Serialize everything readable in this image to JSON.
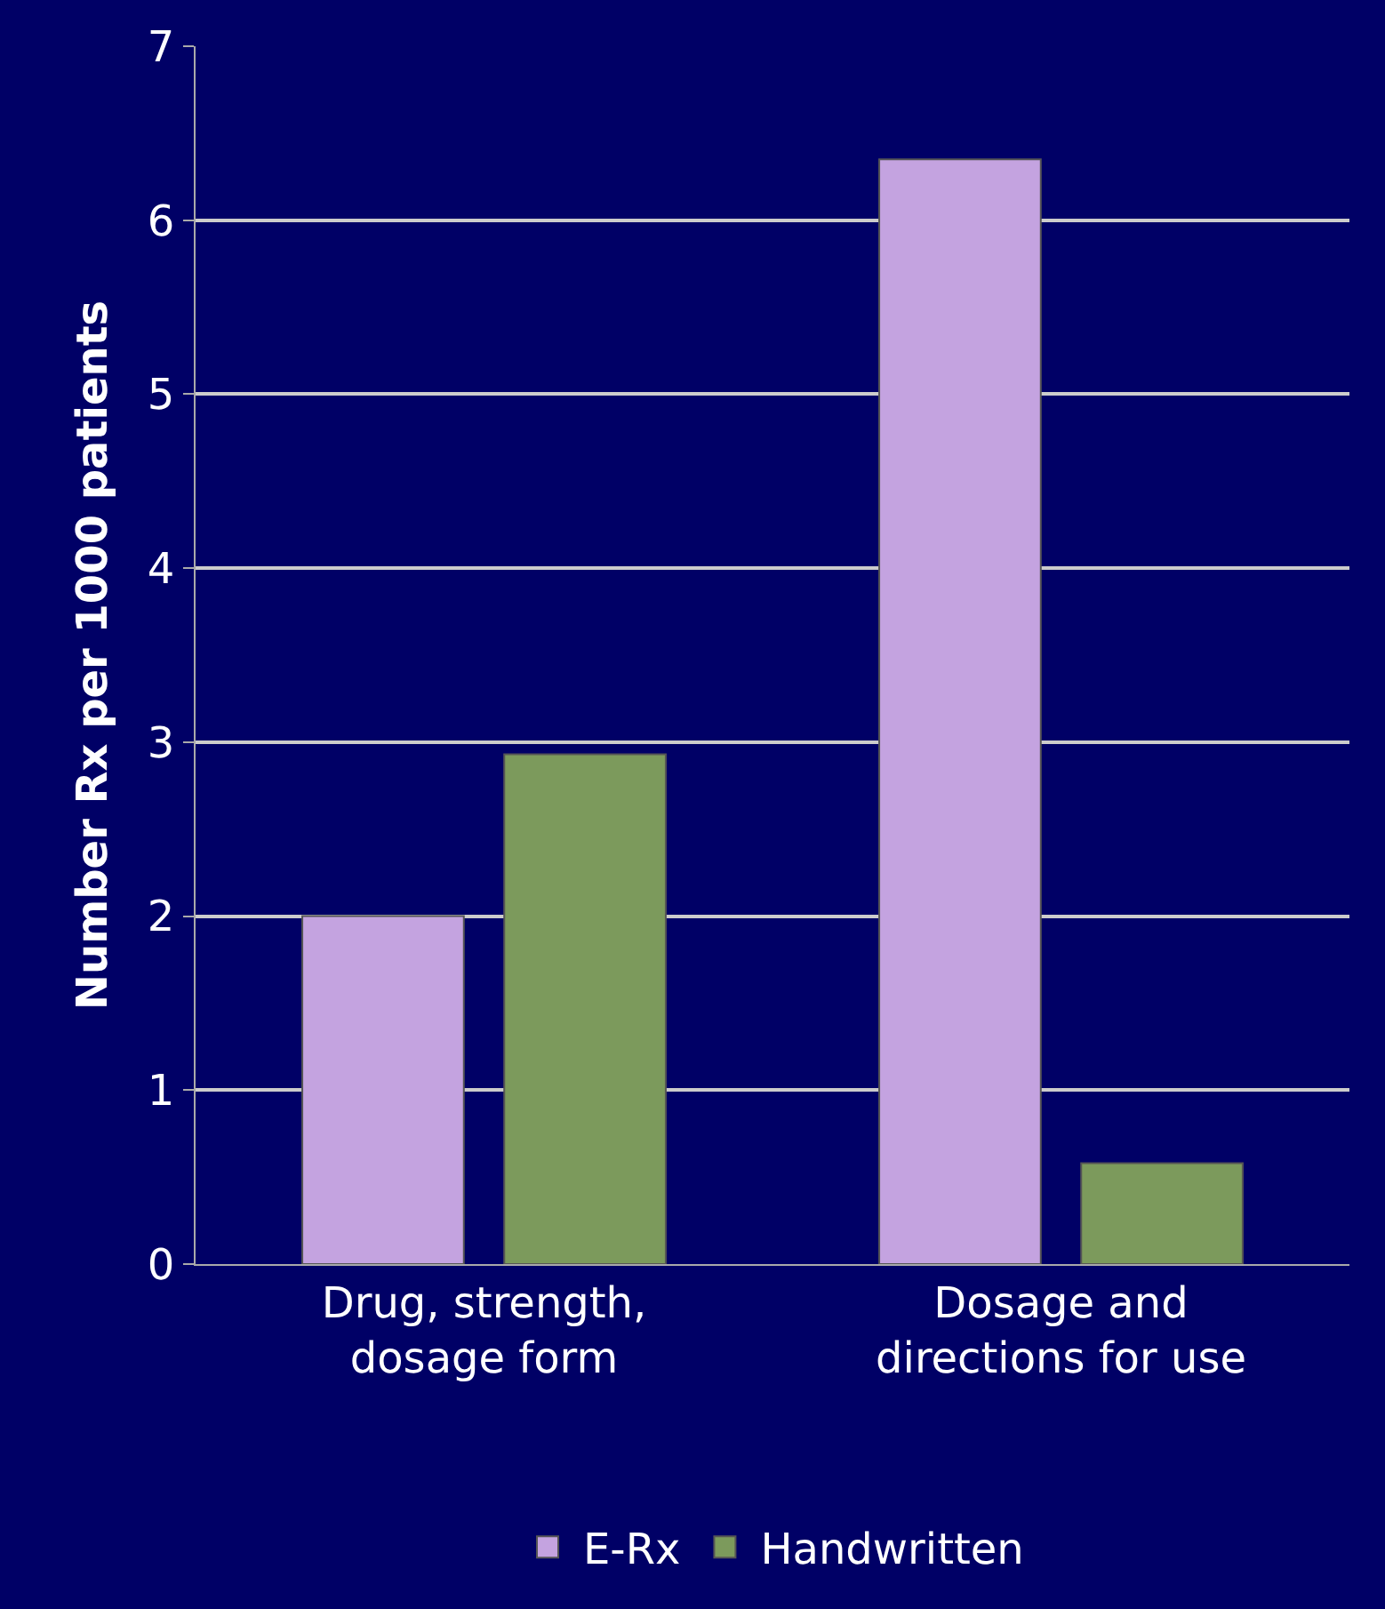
{
  "chart_data": {
    "type": "bar",
    "ylabel": "Number Rx per 1000 patients",
    "categories": [
      "Drug, strength,\ndosage form",
      "Dosage and\ndirections for use"
    ],
    "series": [
      {
        "name": "E-Rx",
        "color": "#c4a3e0",
        "values": [
          2.0,
          6.35
        ]
      },
      {
        "name": "Handwritten",
        "color": "#7c9a5c",
        "values": [
          2.93,
          0.58
        ]
      }
    ],
    "ylim": [
      0,
      7
    ],
    "yticks": [
      0,
      1,
      2,
      3,
      4,
      5,
      6,
      7
    ],
    "grid": "y",
    "legend": "bottom"
  }
}
